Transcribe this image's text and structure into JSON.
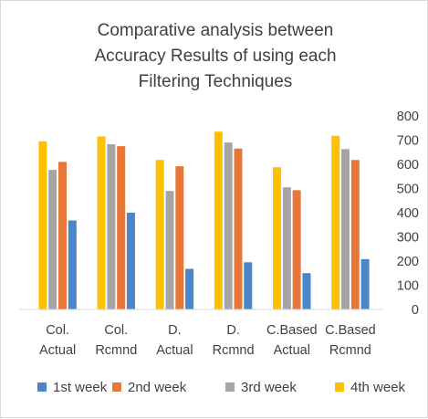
{
  "chart_data": {
    "type": "bar",
    "title_lines": [
      "Comparative analysis between",
      "Accuracy Results of using each",
      "Filtering Techniques"
    ],
    "categories": [
      [
        "Col.",
        "Actual"
      ],
      [
        "Col.",
        "Rcmnd"
      ],
      [
        "D.",
        "Actual"
      ],
      [
        "D.",
        "Rcmnd"
      ],
      [
        "C.Based",
        "Actual"
      ],
      [
        "C.Based",
        "Rcmnd"
      ]
    ],
    "series": [
      {
        "name": "1st week",
        "color": "#4a86c8",
        "values": [
          368,
          400,
          168,
          195,
          150,
          208
        ]
      },
      {
        "name": "2nd week",
        "color": "#e8773a",
        "values": [
          610,
          675,
          592,
          665,
          493,
          618
        ]
      },
      {
        "name": "3rd week",
        "color": "#a5a5a5",
        "values": [
          577,
          683,
          490,
          690,
          505,
          663
        ]
      },
      {
        "name": "4th week",
        "color": "#ffc000",
        "values": [
          695,
          715,
          618,
          735,
          588,
          718
        ]
      }
    ],
    "draw_order": [
      3,
      2,
      1,
      0
    ],
    "yticks": [
      0,
      100,
      200,
      300,
      400,
      500,
      600,
      700,
      800
    ],
    "ylim": [
      0,
      800
    ],
    "y_axis_side": "right",
    "legend_position": "bottom",
    "grid": false
  }
}
